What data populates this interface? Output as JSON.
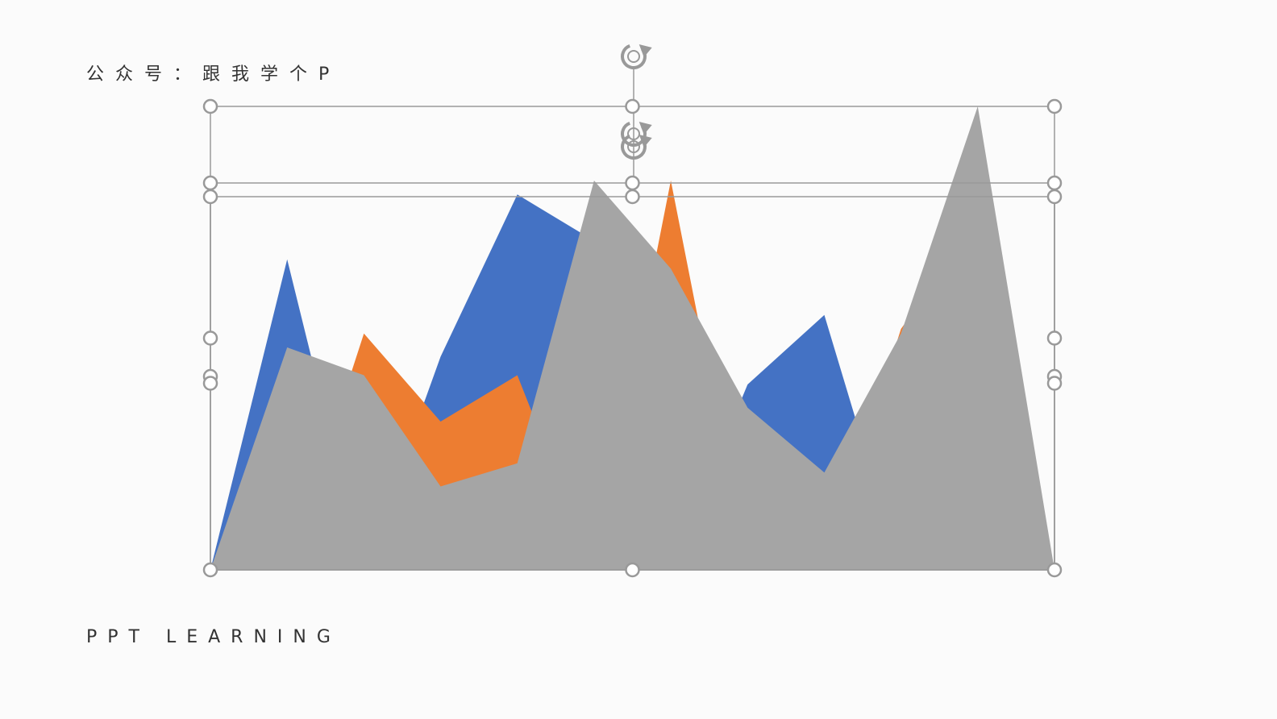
{
  "slide": {
    "header_text": "公众号：跟我学个P",
    "footer_text": "PPT LEARNING"
  },
  "chart_data": {
    "type": "area",
    "title": "",
    "xlabel": "",
    "ylabel": "",
    "x": [
      1,
      2,
      3,
      4,
      5,
      6,
      7,
      8,
      9,
      10,
      11,
      12
    ],
    "ylim": [
      0,
      100
    ],
    "grid": false,
    "legend": "none",
    "series": [
      {
        "color": "#4472c4",
        "values": [
          0,
          67,
          0,
          46,
          81,
          71,
          0,
          40,
          55,
          0,
          0,
          0
        ]
      },
      {
        "color": "#ed7d31",
        "values": [
          0,
          0,
          51,
          32,
          42,
          0,
          84,
          0,
          0,
          52,
          75,
          0
        ]
      },
      {
        "color": "#a5a5a5",
        "values": [
          0,
          48,
          42,
          18,
          23,
          84,
          65,
          35,
          21,
          51,
          100,
          0
        ]
      }
    ]
  },
  "selection": {
    "frame_color": "#999999",
    "rotate_icon": "rotate-icon"
  }
}
